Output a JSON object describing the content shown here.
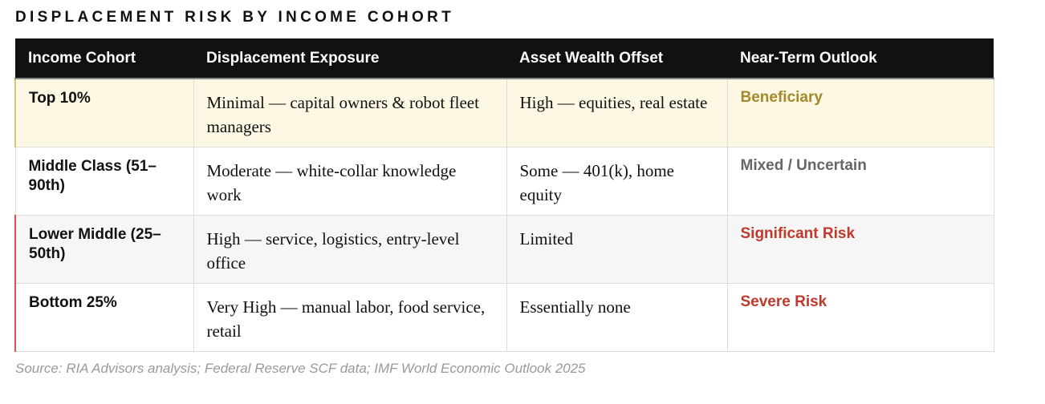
{
  "header": {
    "title": "DISPLACEMENT RISK BY INCOME COHORT"
  },
  "table": {
    "columns": [
      "Income Cohort",
      "Displacement Exposure",
      "Asset Wealth Offset",
      "Near-Term Outlook"
    ],
    "rows": [
      [
        "Top 10%",
        "Minimal — capital owners & robot fleet managers",
        "High — equities, real estate",
        "Beneficiary"
      ],
      [
        "Middle Class (51–90th)",
        "Moderate — white-collar knowledge work",
        "Some — 401(k), home equity",
        "Mixed / Uncertain"
      ],
      [
        "Lower Middle (25–50th)",
        "High — service, logistics, entry-level office",
        "Limited",
        "Significant Risk"
      ],
      [
        "Bottom 25%",
        "Very High — manual labor, food service, retail",
        "Essentially none",
        "Severe Risk"
      ]
    ]
  },
  "footer": {
    "source": "Source: RIA Advisors analysis; Federal Reserve SCF data; IMF World Economic Outlook 2025"
  }
}
